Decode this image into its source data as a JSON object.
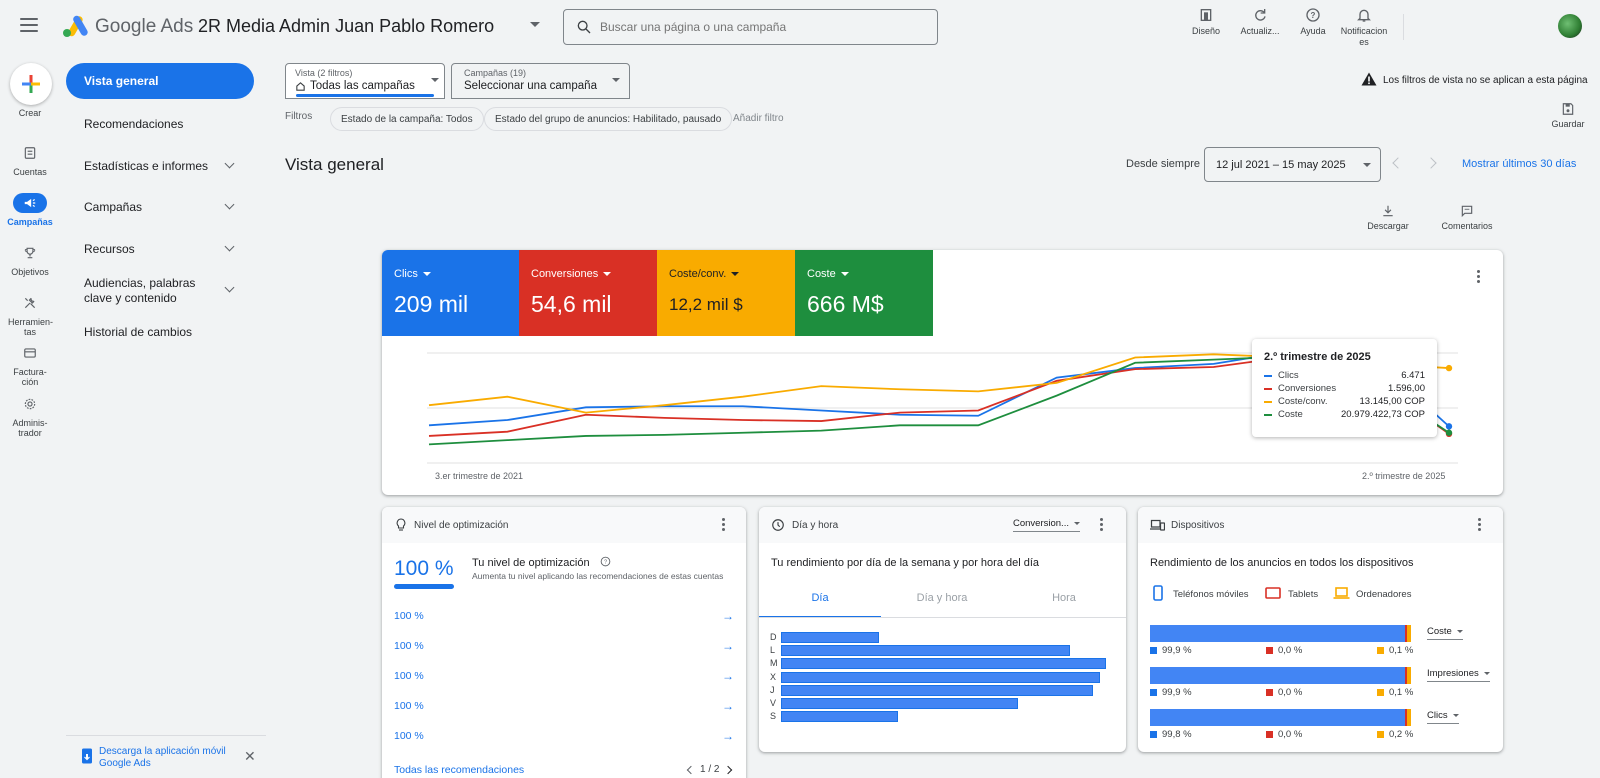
{
  "topbar": {
    "brand": "Google Ads",
    "account_name": "2R Media Admin Juan Pablo Romero",
    "search_placeholder": "Buscar una página o una campaña",
    "actions": [
      "Diseño",
      "Actualiz...",
      "Ayuda",
      "Notificacion es"
    ]
  },
  "rail": {
    "create": "Crear",
    "items": [
      "Cuentas",
      "Campañas",
      "Objetivos",
      "Herramien- tas",
      "Factura- ción",
      "Adminis- trador"
    ]
  },
  "sidebar": {
    "items": [
      "Vista general",
      "Recomendaciones",
      "Estadísticas e informes",
      "Campañas",
      "Recursos",
      "Audiencias, palabras clave y contenido",
      "Historial de cambios"
    ],
    "app_promo": "Descarga la aplicación móvil Google Ads"
  },
  "filters": {
    "view_label": "Vista (2 filtros)",
    "view_value": "Todas las campañas",
    "campaigns_label": "Campañas (19)",
    "campaigns_value": "Seleccionar una campaña",
    "filters_label": "Filtros",
    "chips": [
      "Estado de la campaña: Todos",
      "Estado del grupo de anuncios: Habilitado, pausado"
    ],
    "add_filter": "Añadir filtro",
    "warning": "Los filtros de vista no se aplican a esta página",
    "save": "Guardar"
  },
  "page": {
    "title": "Vista general",
    "since_label": "Desde siempre",
    "date_range": "12 jul 2021 – 15 may 2025",
    "last30": "Mostrar últimos 30 días",
    "download": "Descargar",
    "comments": "Comentarios"
  },
  "metrics": [
    {
      "label": "Clics",
      "value": "209 mil",
      "color": "#1a73e8"
    },
    {
      "label": "Conversiones",
      "value": "54,6 mil",
      "color": "#d93025"
    },
    {
      "label": "Coste/conv.",
      "value": "12,2 mil $",
      "color": "#f9ab00"
    },
    {
      "label": "Coste",
      "value": "666 M$",
      "color": "#1e8e3e"
    }
  ],
  "chart_data": {
    "type": "line",
    "x_start_label": "3.er trimestre de 2021",
    "x_end_label": "2.º trimestre de 2025",
    "series": [
      {
        "name": "Clics",
        "color": "#1a73e8",
        "values": [
          0.28,
          0.33,
          0.45,
          0.46,
          0.46,
          0.42,
          0.38,
          0.37,
          0.73,
          0.82,
          0.86,
          0.98,
          0.94,
          0.27
        ]
      },
      {
        "name": "Conversiones",
        "color": "#d93025",
        "values": [
          0.18,
          0.22,
          0.38,
          0.35,
          0.33,
          0.32,
          0.4,
          0.42,
          0.7,
          0.81,
          0.83,
          0.93,
          0.72,
          0.2
        ]
      },
      {
        "name": "Coste/conv.",
        "color": "#f9ab00",
        "values": [
          0.47,
          0.55,
          0.4,
          0.47,
          0.55,
          0.65,
          0.62,
          0.6,
          0.68,
          0.92,
          0.95,
          0.92,
          0.86,
          0.82
        ]
      },
      {
        "name": "Coste",
        "color": "#1e8e3e",
        "values": [
          0.1,
          0.14,
          0.18,
          0.19,
          0.21,
          0.23,
          0.28,
          0.28,
          0.56,
          0.87,
          0.9,
          0.93,
          0.7,
          0.21
        ]
      }
    ],
    "tooltip": {
      "title": "2.º trimestre de 2025",
      "rows": [
        {
          "name": "Clics",
          "value": "6.471",
          "color": "#1a73e8"
        },
        {
          "name": "Conversiones",
          "value": "1.596,00",
          "color": "#d93025"
        },
        {
          "name": "Coste/conv.",
          "value": "13.145,00 COP",
          "color": "#f9ab00"
        },
        {
          "name": "Coste",
          "value": "20.979.422,73 COP",
          "color": "#1e8e3e"
        }
      ]
    }
  },
  "optimization": {
    "header": "Nivel de optimización",
    "score": "100 %",
    "title": "Tu nivel de optimización",
    "subtitle": "Aumenta tu nivel aplicando las recomendaciones de estas cuentas",
    "rows": [
      "100 %",
      "100 %",
      "100 %",
      "100 %",
      "100 %"
    ],
    "all_link": "Todas las recomendaciones",
    "pagination": "1 / 2"
  },
  "day_hour": {
    "header": "Día y hora",
    "metric": "Conversion...",
    "title": "Tu rendimiento por día de la semana y por hora del día",
    "tabs": [
      "Día",
      "Día y hora",
      "Hora"
    ],
    "days": [
      "D",
      "L",
      "M",
      "X",
      "J",
      "V",
      "S"
    ],
    "values": [
      0.3,
      0.89,
      1.0,
      0.98,
      0.96,
      0.73,
      0.36
    ]
  },
  "devices": {
    "header": "Dispositivos",
    "title": "Rendimiento de los anuncios en todos los dispositivos",
    "legend": [
      {
        "name": "Teléfonos móviles",
        "color": "#1a73e8"
      },
      {
        "name": "Tablets",
        "color": "#d93025"
      },
      {
        "name": "Ordenadores",
        "color": "#f9ab00"
      }
    ],
    "rows": [
      {
        "metric": "Coste",
        "mobile": "99,9 %",
        "tablet": "0,0 %",
        "desktop": "0,1 %"
      },
      {
        "metric": "Impresiones",
        "mobile": "99,9 %",
        "tablet": "0,0 %",
        "desktop": "0,1 %"
      },
      {
        "metric": "Clics",
        "mobile": "99,8 %",
        "tablet": "0,0 %",
        "desktop": "0,2 %"
      }
    ]
  }
}
